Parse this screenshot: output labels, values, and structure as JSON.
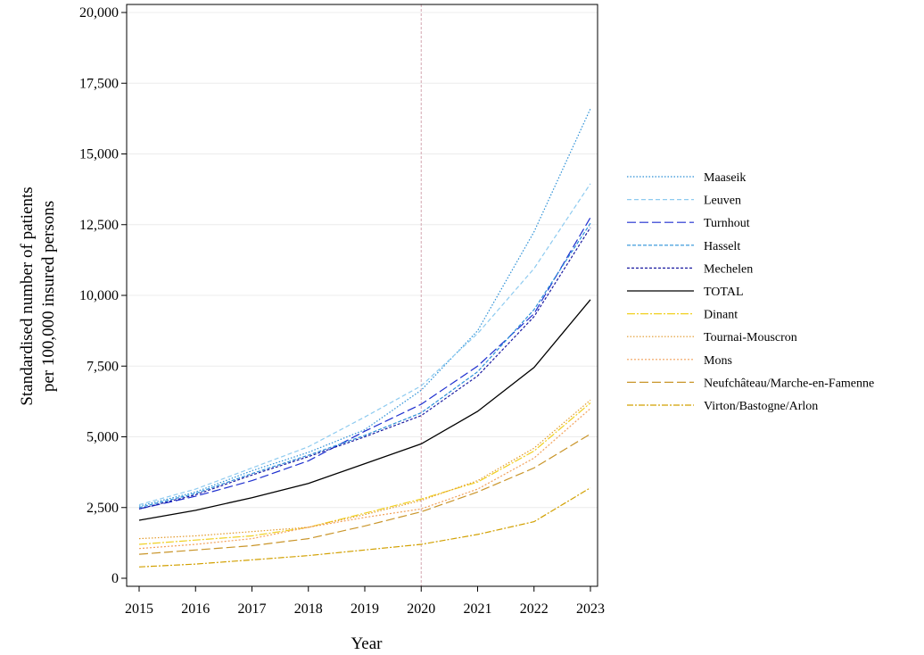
{
  "chart_data": {
    "type": "line",
    "title": "",
    "xlabel": "Year",
    "ylabel_lines": [
      "Standardised number of patients",
      "per 100,000 insured persons"
    ],
    "x": [
      2015,
      2016,
      2017,
      2018,
      2019,
      2020,
      2021,
      2022,
      2023
    ],
    "x_tick_labels": [
      "2015",
      "2016",
      "2017",
      "2018",
      "2019",
      "2020",
      "2021",
      "2022",
      "2023"
    ],
    "ylim": [
      0,
      20000
    ],
    "y_ticks": [
      0,
      2500,
      5000,
      7500,
      10000,
      12500,
      15000,
      17500,
      20000
    ],
    "y_tick_labels": [
      "0",
      "2,500",
      "5,000",
      "7,500",
      "10,000",
      "12,500",
      "15,000",
      "17,500",
      "20,000"
    ],
    "grid": "horizontal",
    "reference_line_x": 2020,
    "reference_line_color": "#d4a5b0",
    "legend_position": "right",
    "series": [
      {
        "name": "Maaseik",
        "color": "#2a8fd6",
        "dash": "1.5,2",
        "values": [
          2550,
          3050,
          3800,
          4450,
          5250,
          6650,
          8750,
          12250,
          16600
        ]
      },
      {
        "name": "Leuven",
        "color": "#8ecbf0",
        "dash": "5,3",
        "values": [
          2600,
          3150,
          3900,
          4650,
          5700,
          6800,
          8650,
          10950,
          13950
        ]
      },
      {
        "name": "Turnhout",
        "color": "#1e2fcf",
        "dash": "10,4",
        "values": [
          2450,
          2900,
          3450,
          4150,
          5200,
          6150,
          7500,
          9350,
          12750
        ]
      },
      {
        "name": "Hasselt",
        "color": "#2a90d8",
        "dash": "4,2",
        "values": [
          2500,
          3000,
          3700,
          4350,
          5050,
          5850,
          7300,
          9500,
          12550
        ]
      },
      {
        "name": "Mechelen",
        "color": "#1a1aa0",
        "dash": "3,2",
        "values": [
          2450,
          2950,
          3650,
          4300,
          5000,
          5750,
          7150,
          9250,
          12400
        ]
      },
      {
        "name": "TOTAL",
        "color": "#000000",
        "dash": "",
        "values": [
          2050,
          2400,
          2850,
          3350,
          4050,
          4750,
          5900,
          7450,
          9850
        ]
      },
      {
        "name": "Dinant",
        "color": "#f0d020",
        "dash": "9,2,2,2",
        "values": [
          1200,
          1350,
          1500,
          1800,
          2300,
          2800,
          3400,
          4500,
          6200
        ]
      },
      {
        "name": "Tournai-Mouscron",
        "color": "#e39a2b",
        "dash": "1.5,2",
        "values": [
          1400,
          1500,
          1650,
          1800,
          2250,
          2750,
          3450,
          4600,
          6300
        ]
      },
      {
        "name": "Mons",
        "color": "#f2a05a",
        "dash": "2,2",
        "values": [
          1050,
          1200,
          1400,
          1800,
          2150,
          2450,
          3150,
          4250,
          6000
        ]
      },
      {
        "name": "Neufchâteau/Marche-en-Famenne",
        "color": "#c9952a",
        "dash": "10,4",
        "values": [
          850,
          1000,
          1150,
          1400,
          1850,
          2350,
          3050,
          3900,
          5100
        ]
      },
      {
        "name": "Virton/Bastogne/Arlon",
        "color": "#d2a000",
        "dash": "7,2,2,2",
        "values": [
          400,
          500,
          650,
          800,
          1000,
          1200,
          1550,
          2000,
          3200
        ]
      }
    ]
  }
}
